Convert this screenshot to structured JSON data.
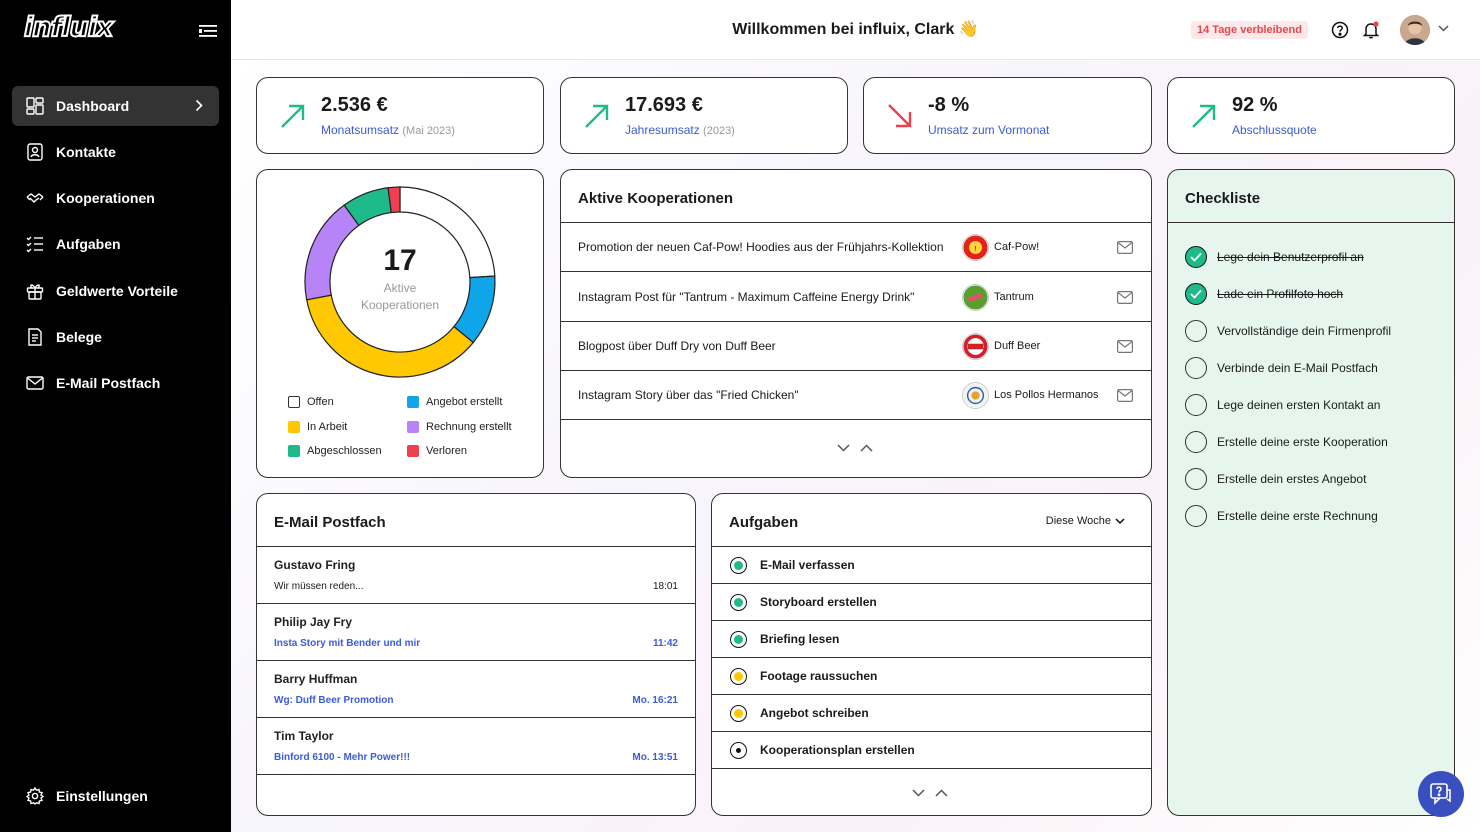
{
  "sidebar": {
    "logo": "influix",
    "items": [
      {
        "label": "Dashboard",
        "icon": "dashboard-icon",
        "active": true
      },
      {
        "label": "Kontakte",
        "icon": "contact-icon"
      },
      {
        "label": "Kooperationen",
        "icon": "handshake-icon"
      },
      {
        "label": "Aufgaben",
        "icon": "tasks-icon"
      },
      {
        "label": "Geldwerte Vorteile",
        "icon": "gift-icon"
      },
      {
        "label": "Belege",
        "icon": "receipt-icon"
      },
      {
        "label": "E-Mail Postfach",
        "icon": "mail-icon"
      }
    ],
    "settings": "Einstellungen"
  },
  "header": {
    "welcome": "Willkommen bei influix, Clark 👋",
    "trial": "14 Tage verbleibend"
  },
  "kpis": [
    {
      "value": "2.536 €",
      "label": "Monatsumsatz",
      "sub": "(Mai 2023)",
      "trend": "up"
    },
    {
      "value": "17.693 €",
      "label": "Jahresumsatz",
      "sub": "(2023)",
      "trend": "up"
    },
    {
      "value": "-8 %",
      "label": "Umsatz zum Vormonat",
      "sub": "",
      "trend": "down"
    },
    {
      "value": "92 %",
      "label": "Abschlussquote",
      "sub": "",
      "trend": "up"
    }
  ],
  "colors": {
    "offen": "#ffffff",
    "in_arbeit": "#ffc800",
    "abgeschlossen": "#1fba8a",
    "angebot": "#0ea5e9",
    "rechnung": "#b784f7",
    "verloren": "#ef4050",
    "trend_up": "#1fba8a",
    "trend_down": "#ef4050",
    "accent": "#3b5bdb"
  },
  "donut": {
    "count": "17",
    "label_line1": "Aktive",
    "label_line2": "Kooperationen",
    "segments": [
      {
        "name": "Offen",
        "value": 24,
        "color": "#ffffff"
      },
      {
        "name": "Angebot erstellt",
        "value": 12,
        "color": "#0ea5e9"
      },
      {
        "name": "In Arbeit",
        "value": 36,
        "color": "#ffc800"
      },
      {
        "name": "Rechnung erstellt",
        "value": 18,
        "color": "#b784f7"
      },
      {
        "name": "Abgeschlossen",
        "value": 8,
        "color": "#1fba8a"
      },
      {
        "name": "Verloren",
        "value": 2,
        "color": "#ef4050"
      }
    ],
    "legend": [
      {
        "label": "Offen",
        "color": "#ffffff"
      },
      {
        "label": "Angebot erstellt",
        "color": "#0ea5e9"
      },
      {
        "label": "In Arbeit",
        "color": "#ffc800"
      },
      {
        "label": "Rechnung erstellt",
        "color": "#b784f7"
      },
      {
        "label": "Abgeschlossen",
        "color": "#1fba8a"
      },
      {
        "label": "Verloren",
        "color": "#ef4050"
      }
    ]
  },
  "cooperations": {
    "title": "Aktive Kooperationen",
    "rows": [
      {
        "text": "Promotion der neuen Caf-Pow! Hoodies aus der Frühjahrs-Kollektion",
        "brand": "Caf-Pow!",
        "logo_color": "#e2231a"
      },
      {
        "text": "Instagram Post für \"Tantrum - Maximum Caffeine Energy Drink\"",
        "brand": "Tantrum",
        "logo_color": "#5a9e2f"
      },
      {
        "text": "Blogpost über Duff Dry von Duff Beer",
        "brand": "Duff Beer",
        "logo_color": "#d31f26"
      },
      {
        "text": "Instagram Story über das \"Fried Chicken\"",
        "brand": "Los Pollos Hermanos",
        "logo_color": "#f2f2f2"
      }
    ]
  },
  "checklist": {
    "title": "Checkliste",
    "items": [
      {
        "label": "Lege dein Benutzerprofil an",
        "done": true
      },
      {
        "label": "Lade ein Profilfoto hoch",
        "done": true
      },
      {
        "label": "Vervollständige dein Firmenprofil",
        "done": false
      },
      {
        "label": "Verbinde dein E-Mail Postfach",
        "done": false
      },
      {
        "label": "Lege deinen ersten Kontakt an",
        "done": false
      },
      {
        "label": "Erstelle deine erste Kooperation",
        "done": false
      },
      {
        "label": "Erstelle dein erstes Angebot",
        "done": false
      },
      {
        "label": "Erstelle deine erste Rechnung",
        "done": false
      }
    ]
  },
  "mail": {
    "title": "E-Mail Postfach",
    "rows": [
      {
        "name": "Gustavo Fring",
        "subject": "Wir müssen reden...",
        "time": "18:01",
        "unread": false
      },
      {
        "name": "Philip Jay Fry",
        "subject": "Insta Story mit Bender und mir",
        "time": "11:42",
        "unread": true
      },
      {
        "name": "Barry Huffman",
        "subject": "Wg: Duff Beer Promotion",
        "time": "Mo. 16:21",
        "unread": true
      },
      {
        "name": "Tim Taylor",
        "subject": "Binford 6100 - Mehr Power!!!",
        "time": "Mo. 13:51",
        "unread": true
      }
    ]
  },
  "tasks": {
    "title": "Aufgaben",
    "filter": "Diese Woche",
    "rows": [
      {
        "label": "E-Mail verfassen",
        "color": "#1fba8a"
      },
      {
        "label": "Storyboard erstellen",
        "color": "#1fba8a"
      },
      {
        "label": "Briefing lesen",
        "color": "#1fba8a"
      },
      {
        "label": "Footage raussuchen",
        "color": "#ffc800"
      },
      {
        "label": "Angebot schreiben",
        "color": "#ffc800"
      },
      {
        "label": "Kooperationsplan erstellen",
        "color": "#111111"
      }
    ]
  }
}
